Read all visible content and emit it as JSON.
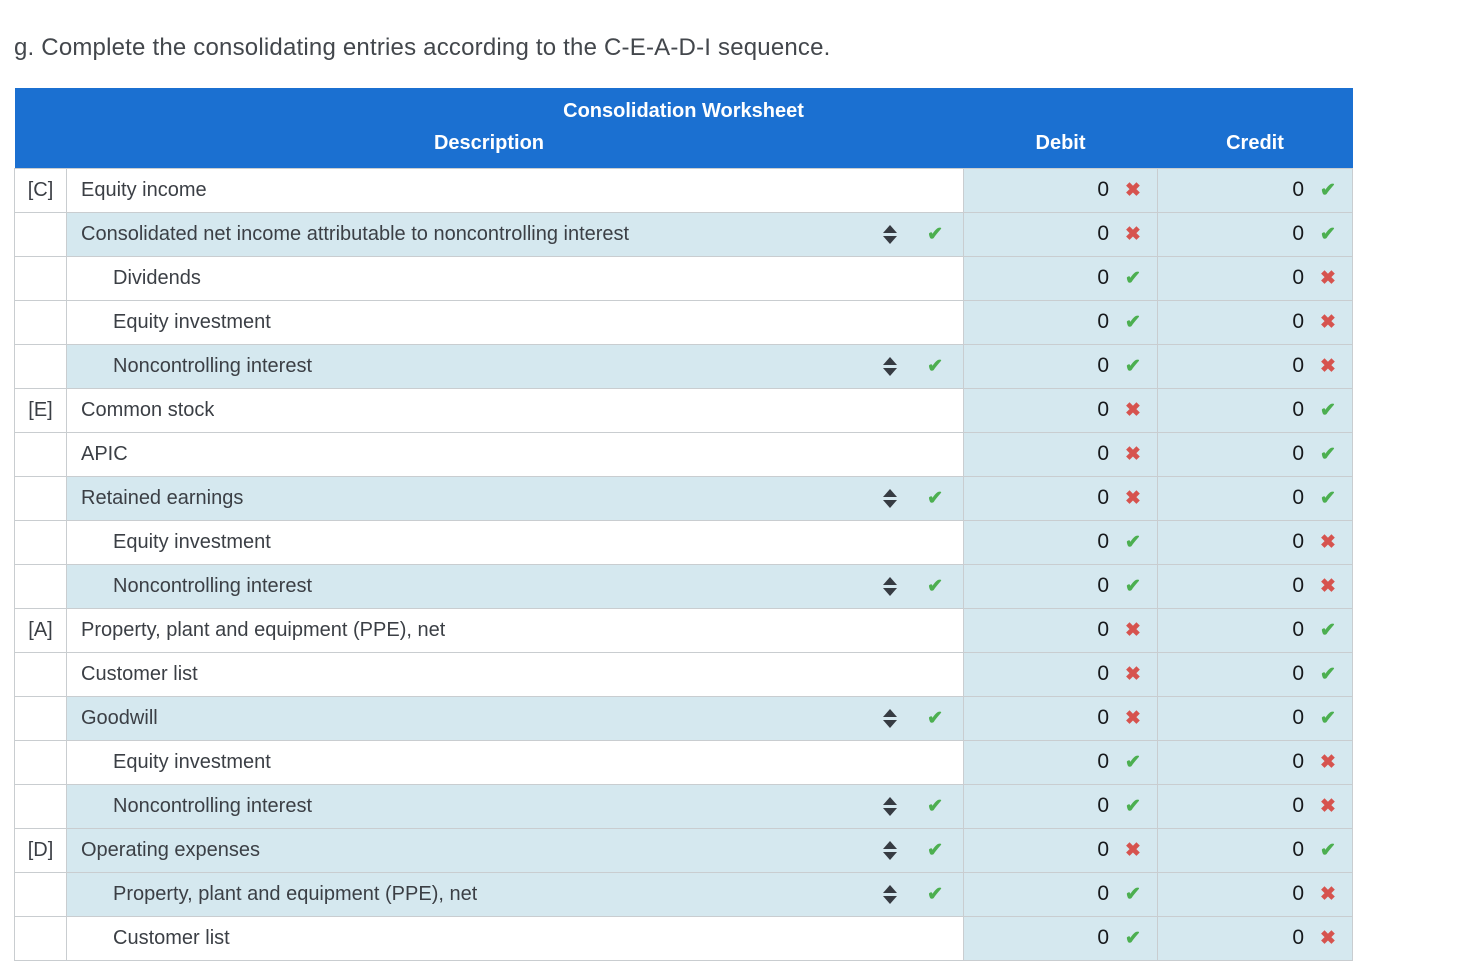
{
  "page": {
    "instruction": "g. Complete the consolidating entries according to the C-E-A-D-I sequence."
  },
  "icons": {
    "correct_glyph": "✔",
    "wrong_glyph": "✖"
  },
  "colors": {
    "header_blue": "#1b70d1",
    "cell_light_blue": "#d5e8ef",
    "correct_green": "#4caf50",
    "wrong_red": "#d6534e",
    "border_gray": "#c9cdd0"
  },
  "worksheet": {
    "title": "Consolidation Worksheet",
    "columns": {
      "description": "Description",
      "debit": "Debit",
      "credit": "Credit"
    },
    "rows": [
      {
        "tag": "[C]",
        "label": "Equity income",
        "indent": 1,
        "selected": false,
        "debit": {
          "value": "0",
          "status": "wrong"
        },
        "credit": {
          "value": "0",
          "status": "correct"
        }
      },
      {
        "tag": "",
        "label": "Consolidated net income attributable to noncontrolling interest",
        "indent": 1,
        "selected": true,
        "debit": {
          "value": "0",
          "status": "wrong"
        },
        "credit": {
          "value": "0",
          "status": "correct"
        }
      },
      {
        "tag": "",
        "label": "Dividends",
        "indent": 2,
        "selected": false,
        "debit": {
          "value": "0",
          "status": "correct"
        },
        "credit": {
          "value": "0",
          "status": "wrong"
        }
      },
      {
        "tag": "",
        "label": "Equity investment",
        "indent": 2,
        "selected": false,
        "debit": {
          "value": "0",
          "status": "correct"
        },
        "credit": {
          "value": "0",
          "status": "wrong"
        }
      },
      {
        "tag": "",
        "label": "Noncontrolling interest",
        "indent": 2,
        "selected": true,
        "debit": {
          "value": "0",
          "status": "correct"
        },
        "credit": {
          "value": "0",
          "status": "wrong"
        }
      },
      {
        "tag": "[E]",
        "label": "Common stock",
        "indent": 1,
        "selected": false,
        "debit": {
          "value": "0",
          "status": "wrong"
        },
        "credit": {
          "value": "0",
          "status": "correct"
        }
      },
      {
        "tag": "",
        "label": "APIC",
        "indent": 1,
        "selected": false,
        "debit": {
          "value": "0",
          "status": "wrong"
        },
        "credit": {
          "value": "0",
          "status": "correct"
        }
      },
      {
        "tag": "",
        "label": "Retained earnings",
        "indent": 1,
        "selected": true,
        "debit": {
          "value": "0",
          "status": "wrong"
        },
        "credit": {
          "value": "0",
          "status": "correct"
        }
      },
      {
        "tag": "",
        "label": "Equity investment",
        "indent": 2,
        "selected": false,
        "debit": {
          "value": "0",
          "status": "correct"
        },
        "credit": {
          "value": "0",
          "status": "wrong"
        }
      },
      {
        "tag": "",
        "label": "Noncontrolling interest",
        "indent": 2,
        "selected": true,
        "debit": {
          "value": "0",
          "status": "correct"
        },
        "credit": {
          "value": "0",
          "status": "wrong"
        }
      },
      {
        "tag": "[A]",
        "label": "Property, plant and equipment (PPE), net",
        "indent": 1,
        "selected": false,
        "debit": {
          "value": "0",
          "status": "wrong"
        },
        "credit": {
          "value": "0",
          "status": "correct"
        }
      },
      {
        "tag": "",
        "label": "Customer list",
        "indent": 1,
        "selected": false,
        "debit": {
          "value": "0",
          "status": "wrong"
        },
        "credit": {
          "value": "0",
          "status": "correct"
        }
      },
      {
        "tag": "",
        "label": "Goodwill",
        "indent": 1,
        "selected": true,
        "debit": {
          "value": "0",
          "status": "wrong"
        },
        "credit": {
          "value": "0",
          "status": "correct"
        }
      },
      {
        "tag": "",
        "label": "Equity investment",
        "indent": 2,
        "selected": false,
        "debit": {
          "value": "0",
          "status": "correct"
        },
        "credit": {
          "value": "0",
          "status": "wrong"
        }
      },
      {
        "tag": "",
        "label": "Noncontrolling interest",
        "indent": 2,
        "selected": true,
        "debit": {
          "value": "0",
          "status": "correct"
        },
        "credit": {
          "value": "0",
          "status": "wrong"
        }
      },
      {
        "tag": "[D]",
        "label": "Operating expenses",
        "indent": 1,
        "selected": true,
        "debit": {
          "value": "0",
          "status": "wrong"
        },
        "credit": {
          "value": "0",
          "status": "correct"
        }
      },
      {
        "tag": "",
        "label": "Property, plant and equipment (PPE), net",
        "indent": 2,
        "selected": true,
        "debit": {
          "value": "0",
          "status": "correct"
        },
        "credit": {
          "value": "0",
          "status": "wrong"
        }
      },
      {
        "tag": "",
        "label": "Customer list",
        "indent": 2,
        "selected": false,
        "debit": {
          "value": "0",
          "status": "correct"
        },
        "credit": {
          "value": "0",
          "status": "wrong"
        }
      }
    ]
  }
}
